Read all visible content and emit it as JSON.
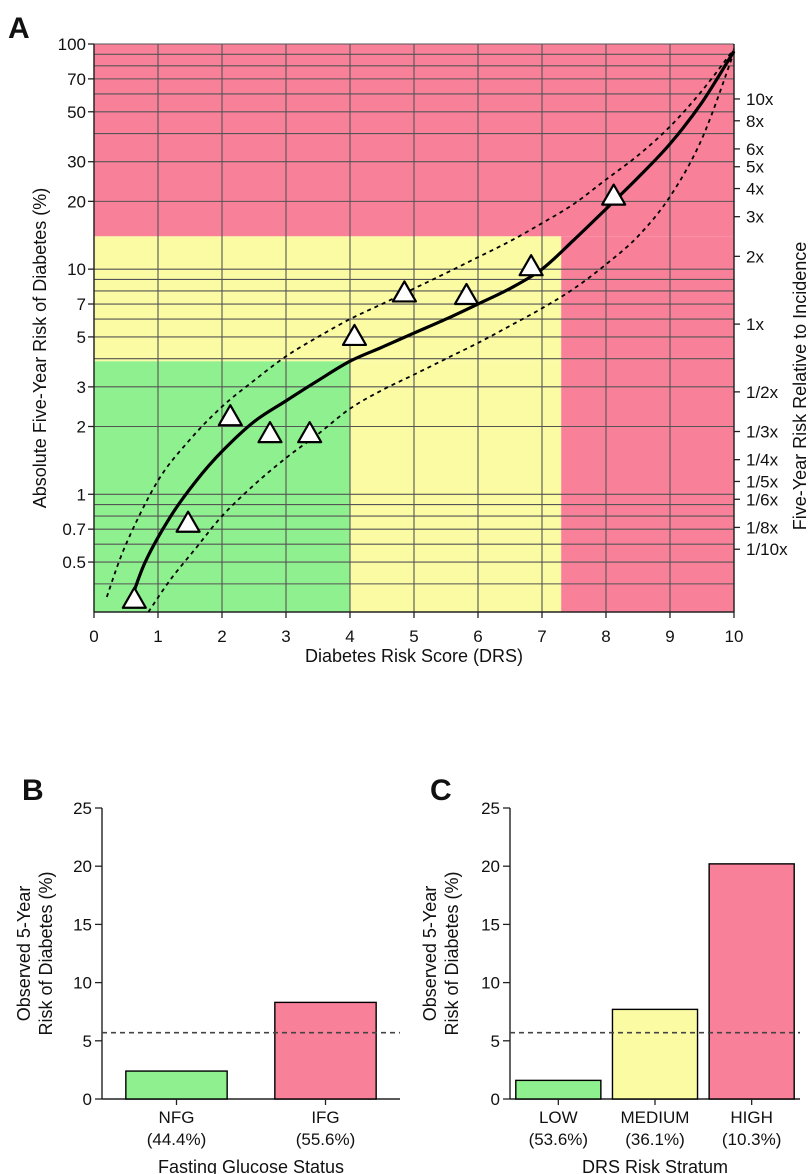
{
  "colors": {
    "green": "#8ff08f",
    "yellow": "#fbfba4",
    "red": "#f98099",
    "grid": "#555555",
    "line": "#000000"
  },
  "chart_data": [
    {
      "panel": "A",
      "type": "line",
      "xlabel": "Diabetes Risk Score (DRS)",
      "ylabel": "Absolute Five-Year Risk of Diabetes (%)",
      "y2label": "Five-Year Risk Relative to Incidence",
      "xlim": [
        0,
        10
      ],
      "ylim": [
        0.3,
        100
      ],
      "yscale": "log",
      "xticks": [
        0,
        1,
        2,
        3,
        4,
        5,
        6,
        7,
        8,
        9,
        10
      ],
      "yticks": [
        0.5,
        0.7,
        1,
        2,
        3,
        5,
        7,
        10,
        20,
        30,
        50,
        70,
        100
      ],
      "ytick_labels": [
        "0.5",
        "0.7",
        "1",
        "2",
        "3",
        "5",
        "7",
        "10",
        "20",
        "30",
        "50",
        "70",
        "100"
      ],
      "y_gridlines": [
        0.4,
        0.5,
        0.6,
        0.7,
        0.8,
        0.9,
        1,
        2,
        3,
        4,
        5,
        6,
        7,
        8,
        9,
        10,
        20,
        30,
        40,
        50,
        60,
        70,
        80,
        90,
        100
      ],
      "grid": true,
      "right_axis": {
        "labels": [
          "10x",
          "8x",
          "6x",
          "5x",
          "4x",
          "3x",
          "2x",
          "1x",
          "1/2x",
          "1/3x",
          "1/4x",
          "1/5x",
          "1/6x",
          "1/8x",
          "1/10x"
        ],
        "values": [
          57,
          45.6,
          34.2,
          28.5,
          22.8,
          17.1,
          11.4,
          5.7,
          2.85,
          1.9,
          1.425,
          1.14,
          0.95,
          0.7125,
          0.57
        ]
      },
      "regions": [
        {
          "color": "green",
          "x": [
            0,
            4
          ],
          "y": [
            0.3,
            3.9
          ]
        },
        {
          "color": "yellow",
          "x": [
            0,
            7.3
          ],
          "y": [
            3.9,
            14
          ]
        },
        {
          "color": "yellow",
          "x": [
            4,
            7.3
          ],
          "y": [
            0.3,
            3.9
          ]
        },
        {
          "color": "red",
          "x": [
            0,
            10
          ],
          "y": [
            14,
            100
          ]
        },
        {
          "color": "red",
          "x": [
            7.3,
            10
          ],
          "y": [
            0.3,
            14
          ]
        }
      ],
      "series": [
        {
          "style": "solid",
          "x": [
            0.55,
            0.8,
            1.2,
            1.6,
            2.0,
            2.5,
            3.0,
            3.5,
            4.0,
            4.5,
            5.0,
            5.5,
            6.0,
            6.5,
            7.0,
            7.5,
            8.0,
            8.5,
            9.0,
            9.5,
            10.0
          ],
          "y": [
            0.32,
            0.5,
            0.8,
            1.15,
            1.55,
            2.1,
            2.6,
            3.2,
            3.9,
            4.5,
            5.2,
            6.0,
            7.0,
            8.2,
            10.0,
            13.5,
            18.5,
            25.5,
            36,
            55,
            93
          ]
        },
        {
          "style": "dashed",
          "x": [
            0.2,
            0.5,
            1.0,
            1.5,
            2.0,
            2.5,
            3.0,
            3.5,
            4.0,
            4.5,
            5.0,
            5.5,
            6.0,
            6.5,
            7.0,
            7.5,
            8.0,
            8.5,
            9.0,
            9.5,
            10.0
          ],
          "y": [
            0.35,
            0.6,
            1.15,
            1.75,
            2.45,
            3.2,
            4.1,
            5.0,
            6.0,
            7.0,
            8.2,
            9.6,
            11.3,
            13.3,
            16,
            19.5,
            25,
            32,
            43,
            62,
            95
          ]
        },
        {
          "style": "dashed",
          "x": [
            0.85,
            1.2,
            1.6,
            2.0,
            2.5,
            3.0,
            3.5,
            4.0,
            4.5,
            5.0,
            5.5,
            6.0,
            6.5,
            7.0,
            7.5,
            8.0,
            8.5,
            9.0,
            9.5,
            10.0
          ],
          "y": [
            0.3,
            0.42,
            0.58,
            0.8,
            1.1,
            1.45,
            1.85,
            2.4,
            2.9,
            3.4,
            4.0,
            4.7,
            5.6,
            6.7,
            8.2,
            10.5,
            14,
            21,
            38,
            92
          ]
        }
      ],
      "markers": {
        "shape": "triangle",
        "x": [
          0.63,
          1.47,
          2.13,
          2.75,
          3.37,
          4.07,
          4.85,
          5.82,
          6.83,
          8.12
        ],
        "y": [
          0.34,
          0.74,
          2.2,
          1.85,
          1.85,
          5.0,
          7.8,
          7.6,
          10.2,
          21
        ]
      }
    },
    {
      "panel": "B",
      "type": "bar",
      "xlabel": "Fasting Glucose Status",
      "ylabel": "Observed 5-Year Risk of Diabetes (%)",
      "ylim": [
        0,
        25
      ],
      "yticks": [
        0,
        5,
        10,
        15,
        20,
        25
      ],
      "categories": [
        "NFG",
        "IFG"
      ],
      "category_pct": [
        "(44.4%)",
        "(55.6%)"
      ],
      "values": [
        2.4,
        8.3
      ],
      "bar_colors": [
        "green",
        "red"
      ],
      "reference_line": 5.7
    },
    {
      "panel": "C",
      "type": "bar",
      "xlabel": "DRS Risk Stratum",
      "ylabel": "Observed 5-Year Risk of Diabetes (%)",
      "ylim": [
        0,
        25
      ],
      "yticks": [
        0,
        5,
        10,
        15,
        20,
        25
      ],
      "categories": [
        "LOW",
        "MEDIUM",
        "HIGH"
      ],
      "category_pct": [
        "(53.6%)",
        "(36.1%)",
        "(10.3%)"
      ],
      "values": [
        1.6,
        7.7,
        20.2
      ],
      "bar_colors": [
        "green",
        "yellow",
        "red"
      ],
      "reference_line": 5.7
    }
  ]
}
